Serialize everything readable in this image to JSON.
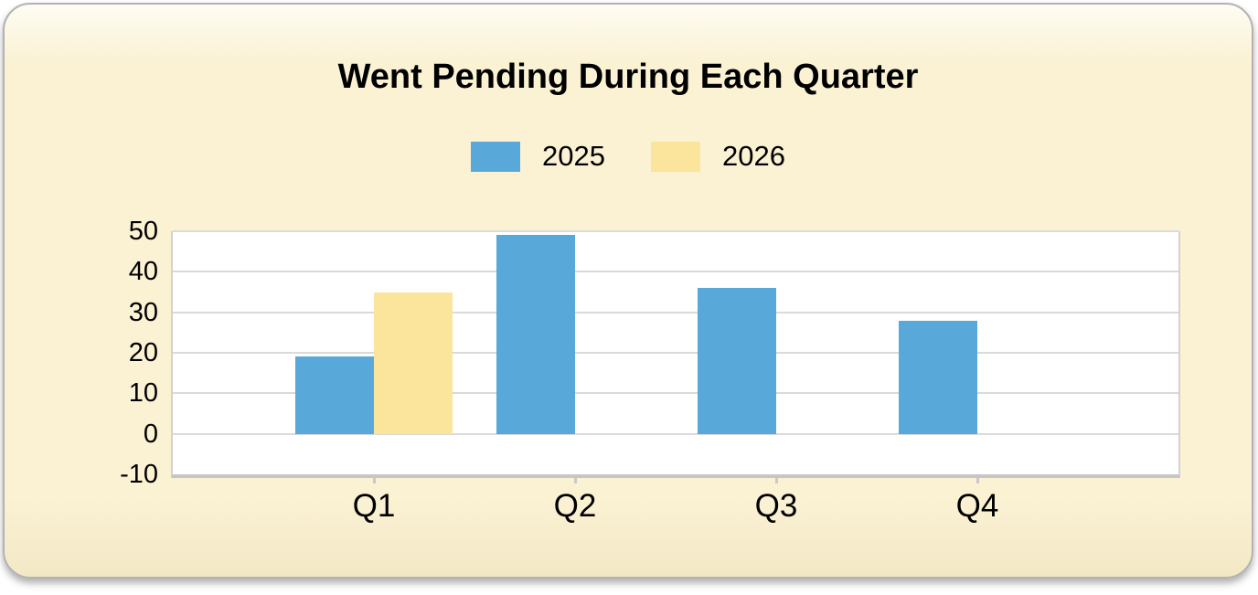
{
  "chart_data": {
    "type": "bar",
    "title": "Went Pending During Each Quarter",
    "categories": [
      "Q1",
      "Q2",
      "Q3",
      "Q4"
    ],
    "series": [
      {
        "name": "2025",
        "color": "#58a9da",
        "values": [
          19,
          49,
          36,
          28
        ]
      },
      {
        "name": "2026",
        "color": "#fbe59d",
        "values": [
          35,
          null,
          null,
          null
        ]
      }
    ],
    "ylim": [
      -10,
      50
    ],
    "ytick_step": 10,
    "yticks": [
      50,
      40,
      30,
      20,
      10,
      0,
      -10
    ],
    "xlabel": "",
    "ylabel": "",
    "grid": "horizontal",
    "legend_position": "top-center"
  },
  "colors": {
    "panel_background": "#fbf2d4",
    "panel_border": "#b2b2b2",
    "plot_background": "#ffffff",
    "gridline": "#dadada",
    "axis_line": "#c6c6c6",
    "text": "#000000"
  }
}
